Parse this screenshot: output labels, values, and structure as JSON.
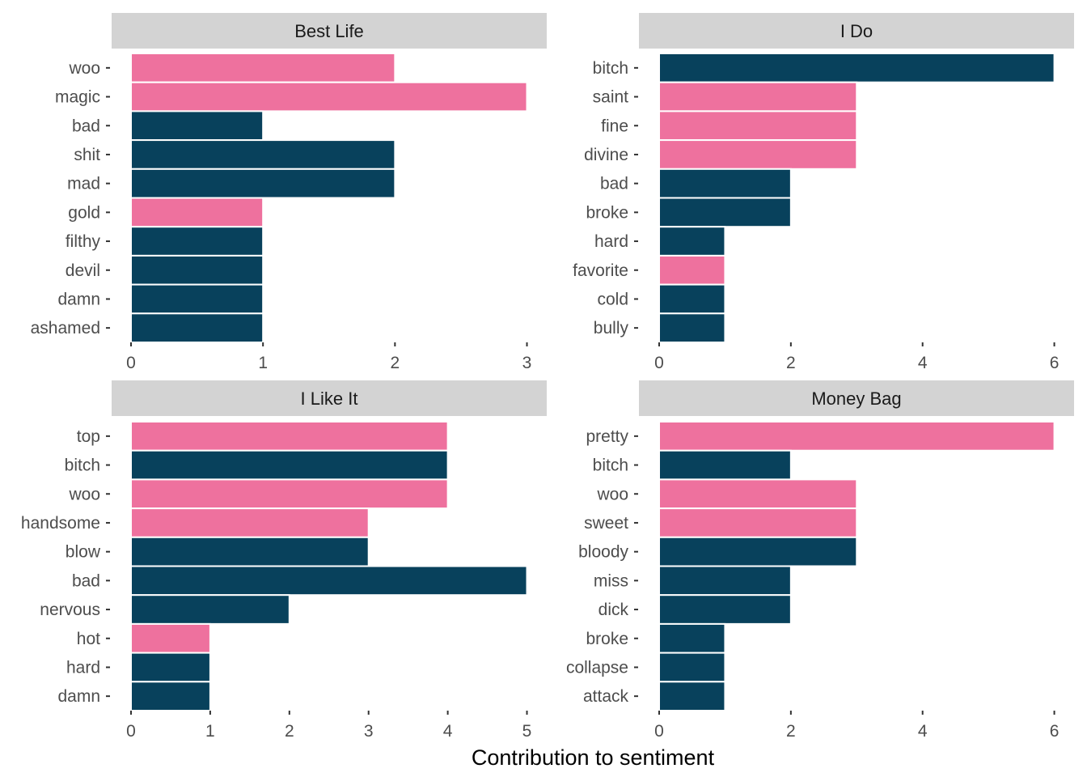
{
  "chart_data": [
    {
      "type": "bar",
      "orientation": "horizontal",
      "title": "Best Life",
      "categories": [
        "woo",
        "magic",
        "bad",
        "shit",
        "mad",
        "gold",
        "filthy",
        "devil",
        "damn",
        "ashamed"
      ],
      "values": [
        2,
        3,
        1,
        2,
        2,
        1,
        1,
        1,
        1,
        1
      ],
      "sentiment": [
        "positive",
        "positive",
        "negative",
        "negative",
        "negative",
        "positive",
        "negative",
        "negative",
        "negative",
        "negative"
      ],
      "xlim": [
        0,
        3.15
      ],
      "xticks": [
        0,
        1,
        2,
        3
      ]
    },
    {
      "type": "bar",
      "orientation": "horizontal",
      "title": "I Do",
      "categories": [
        "bitch",
        "saint",
        "fine",
        "divine",
        "bad",
        "broke",
        "hard",
        "favorite",
        "cold",
        "bully"
      ],
      "values": [
        6,
        3,
        3,
        3,
        2,
        2,
        1,
        1,
        1,
        1
      ],
      "sentiment": [
        "negative",
        "positive",
        "positive",
        "positive",
        "negative",
        "negative",
        "negative",
        "positive",
        "negative",
        "negative"
      ],
      "xlim": [
        0,
        6.3
      ],
      "xticks": [
        0,
        2,
        4,
        6
      ]
    },
    {
      "type": "bar",
      "orientation": "horizontal",
      "title": "I Like It",
      "categories": [
        "top",
        "bitch",
        "woo",
        "handsome",
        "blow",
        "bad",
        "nervous",
        "hot",
        "hard",
        "damn"
      ],
      "values": [
        4,
        4,
        4,
        3,
        3,
        5,
        2,
        1,
        1,
        1
      ],
      "sentiment": [
        "positive",
        "negative",
        "positive",
        "positive",
        "negative",
        "negative",
        "negative",
        "positive",
        "negative",
        "negative"
      ],
      "xlim": [
        0,
        5.25
      ],
      "xticks": [
        0,
        1,
        2,
        3,
        4,
        5
      ]
    },
    {
      "type": "bar",
      "orientation": "horizontal",
      "title": "Money Bag",
      "categories": [
        "pretty",
        "bitch",
        "woo",
        "sweet",
        "bloody",
        "miss",
        "dick",
        "broke",
        "collapse",
        "attack"
      ],
      "values": [
        6,
        2,
        3,
        3,
        3,
        2,
        2,
        1,
        1,
        1
      ],
      "sentiment": [
        "positive",
        "negative",
        "positive",
        "positive",
        "negative",
        "negative",
        "negative",
        "negative",
        "negative",
        "negative"
      ],
      "xlim": [
        0,
        6.3
      ],
      "xticks": [
        0,
        2,
        4,
        6
      ]
    }
  ],
  "xlabel": "Contribution to sentiment",
  "colors": {
    "positive": "#EE719E",
    "negative": "#08415C",
    "strip": "#D3D3D3"
  }
}
